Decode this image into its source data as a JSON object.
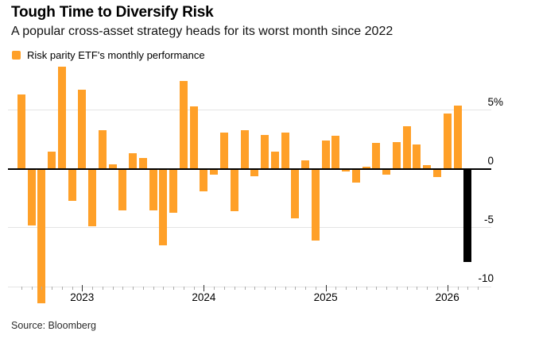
{
  "header": {
    "title": "Tough Time to Diversify Risk",
    "subtitle": "A popular cross-asset strategy heads for its worst month since 2022"
  },
  "legend": {
    "label": "Risk parity ETF's monthly performance"
  },
  "footer": {
    "source": "Source: Bloomberg"
  },
  "chart_data": {
    "type": "bar",
    "title": "Tough Time to Diversify Risk",
    "subtitle": "A popular cross-asset strategy heads for its worst month since 2022",
    "legend": "Risk parity ETF's monthly performance",
    "unit": "%",
    "ylim": [
      -11.5,
      9
    ],
    "grid": true,
    "colors": {
      "bar": "#FFA028",
      "highlight": "#000000",
      "gridline": "#e4e4e4"
    },
    "y_ticks": [
      {
        "label": "5%",
        "value": 5
      },
      {
        "label": "0",
        "value": 0
      },
      {
        "label": "-5",
        "value": -5
      },
      {
        "label": "-10",
        "value": -10
      }
    ],
    "x_year_labels": [
      "2023",
      "2024",
      "2025",
      "2026"
    ],
    "series": [
      {
        "month": "Jul 2022",
        "value": 6.3
      },
      {
        "month": "Aug 2022",
        "value": -4.8
      },
      {
        "month": "Sep 2022",
        "value": -11.4
      },
      {
        "month": "Oct 2022",
        "value": 1.5
      },
      {
        "month": "Nov 2022",
        "value": 8.7
      },
      {
        "month": "Dec 2022",
        "value": -2.7
      },
      {
        "month": "Jan 2023",
        "value": 6.7
      },
      {
        "month": "Feb 2023",
        "value": -4.9
      },
      {
        "month": "Mar 2023",
        "value": 3.3
      },
      {
        "month": "Apr 2023",
        "value": 0.4
      },
      {
        "month": "May 2023",
        "value": -3.5
      },
      {
        "month": "Jun 2023",
        "value": 1.3
      },
      {
        "month": "Jul 2023",
        "value": 0.9
      },
      {
        "month": "Aug 2023",
        "value": -3.5
      },
      {
        "month": "Sep 2023",
        "value": -6.5
      },
      {
        "month": "Oct 2023",
        "value": -3.7
      },
      {
        "month": "Nov 2023",
        "value": 7.5
      },
      {
        "month": "Dec 2023",
        "value": 5.3
      },
      {
        "month": "Jan 2024",
        "value": -1.9
      },
      {
        "month": "Feb 2024",
        "value": -0.5
      },
      {
        "month": "Mar 2024",
        "value": 3.1
      },
      {
        "month": "Apr 2024",
        "value": -3.6
      },
      {
        "month": "May 2024",
        "value": 3.3
      },
      {
        "month": "Jun 2024",
        "value": -0.6
      },
      {
        "month": "Jul 2024",
        "value": 2.9
      },
      {
        "month": "Aug 2024",
        "value": 1.5
      },
      {
        "month": "Sep 2024",
        "value": 3.1
      },
      {
        "month": "Oct 2024",
        "value": -4.2
      },
      {
        "month": "Nov 2024",
        "value": 0.7
      },
      {
        "month": "Dec 2024",
        "value": -6.1
      },
      {
        "month": "Jan 2025",
        "value": 2.4
      },
      {
        "month": "Feb 2025",
        "value": 2.8
      },
      {
        "month": "Mar 2025",
        "value": -0.2
      },
      {
        "month": "Apr 2025",
        "value": -1.2
      },
      {
        "month": "May 2025",
        "value": 0.2
      },
      {
        "month": "Jun 2025",
        "value": 2.2
      },
      {
        "month": "Jul 2025",
        "value": -0.5
      },
      {
        "month": "Aug 2025",
        "value": 2.3
      },
      {
        "month": "Sep 2025",
        "value": 3.6
      },
      {
        "month": "Oct 2025",
        "value": 2.1
      },
      {
        "month": "Nov 2025",
        "value": 0.3
      },
      {
        "month": "Dec 2025",
        "value": -0.7
      },
      {
        "month": "Jan 2026",
        "value": 4.7
      },
      {
        "month": "Feb 2026",
        "value": 5.4
      },
      {
        "month": "Mar 2026",
        "value": -7.9,
        "highlight": true
      }
    ]
  }
}
